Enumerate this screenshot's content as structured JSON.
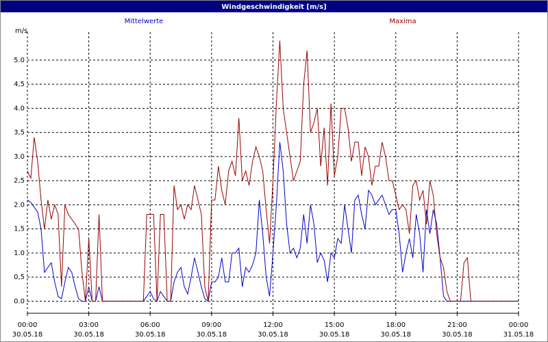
{
  "chart_data": {
    "type": "line",
    "title": "Windgeschwindigkeit [m/s]",
    "y_label": "m/s",
    "x": [
      0,
      10,
      20,
      30,
      40,
      50,
      60,
      70,
      80,
      90,
      100,
      110,
      120,
      130,
      140,
      150,
      160,
      170,
      180,
      190,
      200,
      210,
      220,
      230,
      240,
      250,
      260,
      270,
      280,
      290,
      300,
      310,
      320,
      330,
      340,
      350,
      360,
      370,
      380,
      390,
      400,
      410,
      420,
      430,
      440,
      450,
      460,
      470,
      480,
      490,
      500,
      510,
      520,
      530,
      540,
      550,
      560,
      570,
      580,
      590,
      600,
      610,
      620,
      630,
      640,
      650,
      660,
      670,
      680,
      690,
      700,
      710,
      720,
      730,
      740,
      750,
      760,
      770,
      780,
      790,
      800,
      810,
      820,
      830,
      840,
      850,
      860,
      870,
      880,
      890,
      900,
      910,
      920,
      930,
      940,
      950,
      960,
      970,
      980,
      990,
      1000,
      1010,
      1020,
      1030,
      1040,
      1050,
      1060,
      1070,
      1080,
      1090,
      1100,
      1110,
      1120,
      1130,
      1140,
      1150,
      1160,
      1170,
      1180,
      1190,
      1200,
      1210,
      1220,
      1230,
      1240,
      1250,
      1260,
      1270,
      1280,
      1290,
      1300,
      1310,
      1320,
      1330,
      1340,
      1350,
      1360,
      1370,
      1380,
      1390,
      1400,
      1410,
      1420,
      1430,
      1440
    ],
    "series": [
      {
        "name": "Mittelwerte",
        "color": "#0000cc",
        "values": [
          2.1,
          2.05,
          1.95,
          1.85,
          1.5,
          0.6,
          0.7,
          0.8,
          0.4,
          0.1,
          0.05,
          0.4,
          0.7,
          0.6,
          0.3,
          0.05,
          0,
          0,
          0.3,
          0,
          0,
          0.3,
          0,
          0,
          0,
          0,
          0,
          0,
          0,
          0,
          0,
          0,
          0,
          0,
          0,
          0.1,
          0.2,
          0.05,
          0,
          0.2,
          0.1,
          0,
          0,
          0.4,
          0.6,
          0.7,
          0.3,
          0.15,
          0.5,
          0.9,
          0.6,
          0.3,
          0.05,
          0,
          0.4,
          0.4,
          0.5,
          0.9,
          0.4,
          0.4,
          1,
          1,
          1.1,
          0.3,
          0.7,
          0.6,
          0.75,
          1,
          2.1,
          1.4,
          0.5,
          0.1,
          1,
          2,
          3.3,
          2.7,
          1.6,
          1,
          1.1,
          0.9,
          1.1,
          1.8,
          1.2,
          2,
          1.6,
          0.8,
          1,
          0.85,
          0.4,
          1,
          0.9,
          1.3,
          1.2,
          2,
          1.5,
          1,
          2.1,
          2.2,
          1.8,
          1.5,
          2.3,
          2.2,
          2,
          2.1,
          2.2,
          2,
          1.8,
          1.9,
          1.9,
          1.4,
          0.6,
          1,
          1.3,
          0.9,
          1.8,
          1.4,
          0.6,
          1.9,
          1.4,
          1.9,
          1.6,
          0.9,
          0.1,
          0,
          0,
          0,
          0,
          0,
          0,
          0,
          0,
          0,
          0,
          0,
          0,
          0,
          0,
          0,
          0,
          0,
          0,
          0,
          0,
          0,
          0
        ]
      },
      {
        "name": "Maxima",
        "color": "#990000",
        "values": [
          2.7,
          2.55,
          3.4,
          2.9,
          2.1,
          1.5,
          2.1,
          1.7,
          2,
          1.8,
          0.3,
          2,
          1.8,
          1.7,
          1.6,
          1.5,
          0.6,
          0,
          1.3,
          0,
          0,
          1.8,
          0,
          0,
          0,
          0,
          0,
          0,
          0,
          0,
          0,
          0,
          0,
          0,
          0,
          1.8,
          1.8,
          1.8,
          0,
          1.8,
          1.8,
          0,
          0,
          2.4,
          1.9,
          2,
          1.7,
          2,
          1.9,
          2.4,
          2.1,
          1.8,
          0.3,
          0,
          2.1,
          2.1,
          2.8,
          2.3,
          2,
          2.7,
          2.9,
          2.6,
          3.8,
          2.5,
          2.7,
          2.4,
          2.9,
          3.2,
          3,
          2.7,
          1.9,
          1.2,
          2.5,
          4.1,
          5.4,
          4,
          3.5,
          3,
          2.5,
          2.7,
          2.9,
          4.5,
          5.2,
          3.5,
          3.7,
          4,
          2.8,
          3.6,
          2.4,
          4.1,
          2.6,
          3,
          4,
          4,
          3.6,
          2.9,
          3.3,
          3.3,
          2.6,
          3.2,
          3,
          2.4,
          2.8,
          2.8,
          3.3,
          3,
          2.5,
          2.5,
          2.2,
          1.9,
          2,
          1.9,
          1.4,
          2.4,
          2.5,
          2.1,
          2.3,
          1.6,
          2.5,
          2.2,
          1.4,
          0.9,
          0.7,
          0.2,
          0,
          0,
          0,
          0,
          0.8,
          0.9,
          0,
          0,
          0,
          0,
          0,
          0,
          0,
          0,
          0,
          0,
          0,
          0,
          0,
          0,
          0
        ]
      }
    ],
    "xlim": [
      0,
      1440
    ],
    "xticks": [
      {
        "value": 0,
        "label": "00:00",
        "date": "30.05.18"
      },
      {
        "value": 180,
        "label": "03:00",
        "date": "30.05.18"
      },
      {
        "value": 360,
        "label": "06:00",
        "date": "30.05.18"
      },
      {
        "value": 540,
        "label": "09:00",
        "date": "30.05.18"
      },
      {
        "value": 720,
        "label": "12:00",
        "date": "30.05.18"
      },
      {
        "value": 900,
        "label": "15:00",
        "date": "30.05.18"
      },
      {
        "value": 1080,
        "label": "18:00",
        "date": "30.05.18"
      },
      {
        "value": 1260,
        "label": "21:00",
        "date": "30.05.18"
      },
      {
        "value": 1440,
        "label": "00:00",
        "date": "31.05.18"
      }
    ],
    "ylim": [
      -0.25,
      5.75
    ],
    "yticks": [
      {
        "value": 0,
        "label": "0.0"
      },
      {
        "value": 0.5,
        "label": "0,5"
      },
      {
        "value": 1,
        "label": "1.0"
      },
      {
        "value": 1.5,
        "label": "1,5"
      },
      {
        "value": 2,
        "label": "2.0"
      },
      {
        "value": 2.5,
        "label": "2,5"
      },
      {
        "value": 3,
        "label": "3.0"
      },
      {
        "value": 3.5,
        "label": "3,5"
      },
      {
        "value": 4,
        "label": "4.0"
      },
      {
        "value": 4.5,
        "label": "4,5"
      },
      {
        "value": 5,
        "label": "5.0"
      }
    ],
    "grid": true
  }
}
